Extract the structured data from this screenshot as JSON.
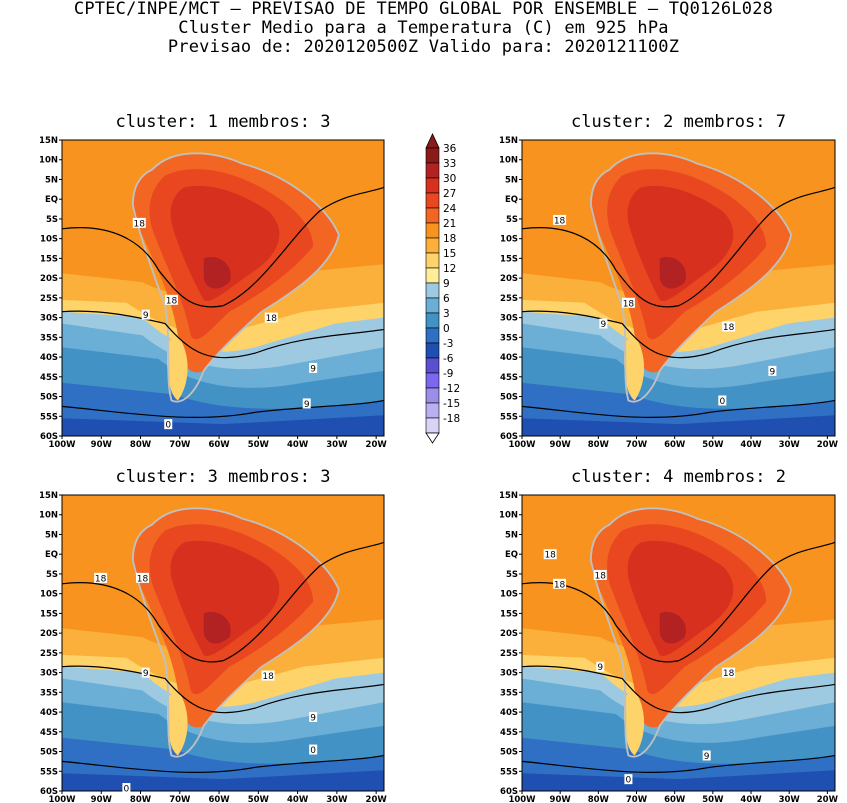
{
  "header": {
    "line1": "CPTEC/INPE/MCT – PREVISAO DE TEMPO GLOBAL POR ENSEMBLE – TQ0126L028",
    "line2": "Cluster Medio para a Temperatura (C) em 925 hPa",
    "line3": "Previsao de: 2020120500Z   Valido para: 2020121100Z"
  },
  "panels": [
    {
      "title": "cluster: 1  membros: 3",
      "contour_labels": [
        "18",
        "18",
        "18",
        "9",
        "9",
        "9",
        "0"
      ]
    },
    {
      "title": "cluster: 2  membros: 7",
      "contour_labels": [
        "18",
        "18",
        "18",
        "9",
        "9",
        "0"
      ]
    },
    {
      "title": "cluster: 3  membros: 3",
      "contour_labels": [
        "18",
        "18",
        "18",
        "9",
        "9",
        "0",
        "0"
      ]
    },
    {
      "title": "cluster: 4  membros: 2",
      "contour_labels": [
        "18",
        "18",
        "18",
        "18",
        "9",
        "9",
        "0"
      ]
    }
  ],
  "axes": {
    "lat_labels": [
      "15N",
      "10N",
      "5N",
      "EQ",
      "5S",
      "10S",
      "15S",
      "20S",
      "25S",
      "30S",
      "35S",
      "40S",
      "45S",
      "50S",
      "55S",
      "60S"
    ],
    "lon_labels": [
      "100W",
      "90W",
      "80W",
      "70W",
      "60W",
      "50W",
      "40W",
      "30W",
      "20W"
    ]
  },
  "colorbar": {
    "labels": [
      "36",
      "33",
      "30",
      "27",
      "24",
      "21",
      "18",
      "15",
      "12",
      "9",
      "6",
      "3",
      "0",
      "-3",
      "-6",
      "-9",
      "-12",
      "-15",
      "-18"
    ],
    "colors": [
      "#8b1a1a",
      "#b22222",
      "#d7301f",
      "#e8471f",
      "#f26522",
      "#f7931e",
      "#fbb03b",
      "#fdd36a",
      "#ffed99",
      "#9ecae1",
      "#6baed6",
      "#4292c6",
      "#2f6fc4",
      "#1f4fb0",
      "#5a4fcf",
      "#7b68ee",
      "#9a8ee8",
      "#b8b0f0",
      "#d8d4f8"
    ]
  },
  "colors": {
    "land": "#c0c0c0",
    "contour": "#000000"
  }
}
